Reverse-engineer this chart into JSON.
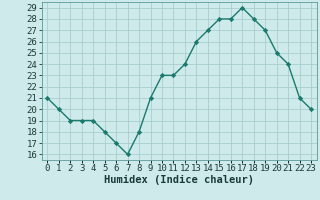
{
  "x": [
    0,
    1,
    2,
    3,
    4,
    5,
    6,
    7,
    8,
    9,
    10,
    11,
    12,
    13,
    14,
    15,
    16,
    17,
    18,
    19,
    20,
    21,
    22,
    23
  ],
  "y": [
    21,
    20,
    19,
    19,
    19,
    18,
    17,
    16,
    18,
    21,
    23,
    23,
    24,
    26,
    27,
    28,
    28,
    29,
    28,
    27,
    25,
    24,
    21,
    20
  ],
  "line_color": "#1a7a6e",
  "marker": "D",
  "marker_size": 2.2,
  "line_width": 1.0,
  "bg_color": "#ceeaea",
  "grid_color": "#aacece",
  "xlabel": "Humidex (Indice chaleur)",
  "xlim": [
    -0.5,
    23.5
  ],
  "ylim": [
    15.5,
    29.5
  ],
  "yticks": [
    16,
    17,
    18,
    19,
    20,
    21,
    22,
    23,
    24,
    25,
    26,
    27,
    28,
    29
  ],
  "xtick_labels": [
    "0",
    "1",
    "2",
    "3",
    "4",
    "5",
    "6",
    "7",
    "8",
    "9",
    "10",
    "11",
    "12",
    "13",
    "14",
    "15",
    "16",
    "17",
    "18",
    "19",
    "20",
    "21",
    "22",
    "23"
  ],
  "tick_fontsize": 6.5,
  "xlabel_fontsize": 7.5,
  "label_color": "#1a3a3a"
}
